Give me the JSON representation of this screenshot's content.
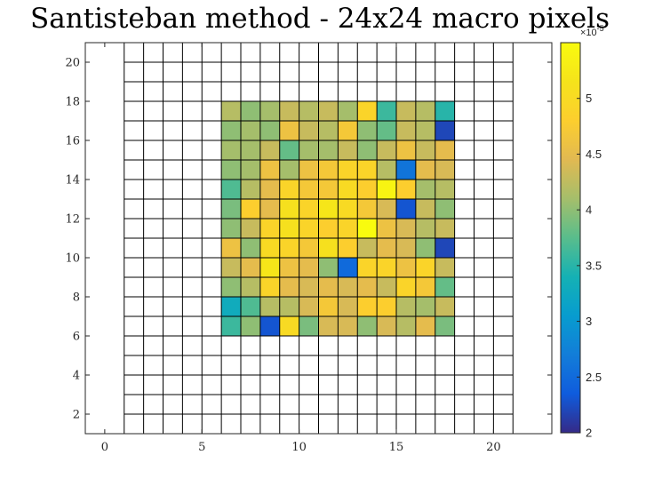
{
  "chart_data": {
    "type": "heatmap",
    "title": "Santisteban method - 24x24 macro pixels",
    "xlim": [
      -1,
      23
    ],
    "ylim": [
      1,
      21
    ],
    "x_ticks": [
      0,
      5,
      10,
      15,
      20
    ],
    "y_ticks": [
      2,
      4,
      6,
      8,
      10,
      12,
      14,
      16,
      18,
      20
    ],
    "grid_cols": [
      1,
      21
    ],
    "grid_rows": [
      1,
      21
    ],
    "data_cols": [
      6,
      18
    ],
    "data_rows": [
      6,
      18
    ],
    "colormap": "parula",
    "colorbar": {
      "min": 2e-05,
      "max": 5.5e-05,
      "ticks": [
        2,
        2.5,
        3,
        3.5,
        4,
        4.5,
        5
      ],
      "tick_labels": [
        "2",
        "2.5",
        "3",
        "3.5",
        "4",
        "4.5",
        "5"
      ],
      "exponent_label": "×10",
      "exponent_power": "-5"
    },
    "rows_top_to_bottom": [
      [
        4.2,
        4.0,
        4.1,
        4.3,
        4.2,
        4.3,
        4.1,
        4.9,
        3.6,
        4.3,
        4.2,
        3.5
      ],
      [
        4.0,
        4.1,
        4.0,
        4.6,
        4.3,
        4.2,
        4.7,
        4.0,
        3.8,
        4.3,
        4.2,
        2.2
      ],
      [
        4.1,
        4.1,
        4.3,
        3.8,
        4.1,
        4.1,
        4.3,
        4.0,
        4.3,
        4.6,
        4.3,
        4.5
      ],
      [
        4.0,
        4.1,
        4.6,
        4.1,
        4.6,
        4.7,
        4.9,
        4.9,
        4.2,
        2.6,
        4.5,
        4.4
      ],
      [
        3.7,
        4.2,
        4.5,
        4.9,
        4.7,
        4.7,
        5.0,
        4.8,
        5.4,
        4.8,
        4.1,
        4.2
      ],
      [
        3.9,
        4.8,
        4.5,
        5.1,
        4.9,
        5.2,
        5.0,
        4.7,
        4.4,
        2.3,
        4.3,
        4.0
      ],
      [
        4.0,
        4.3,
        4.9,
        5.1,
        4.9,
        4.8,
        4.9,
        5.5,
        4.6,
        4.4,
        4.2,
        4.3
      ],
      [
        4.6,
        4.0,
        5.0,
        4.9,
        4.7,
        5.1,
        4.8,
        4.3,
        4.5,
        4.4,
        4.0,
        2.2
      ],
      [
        4.3,
        4.5,
        5.2,
        4.6,
        4.5,
        4.0,
        2.5,
        4.9,
        4.9,
        4.6,
        4.9,
        4.3
      ],
      [
        4.0,
        4.2,
        4.9,
        4.5,
        4.4,
        4.5,
        4.4,
        4.5,
        4.3,
        4.9,
        4.7,
        3.8
      ],
      [
        3.3,
        3.7,
        4.2,
        4.2,
        4.4,
        4.7,
        4.4,
        4.8,
        4.8,
        4.2,
        4.1,
        4.3
      ],
      [
        3.6,
        4.0,
        2.3,
        5.0,
        3.9,
        4.4,
        4.4,
        4.0,
        4.4,
        4.2,
        4.5,
        3.9
      ]
    ]
  }
}
